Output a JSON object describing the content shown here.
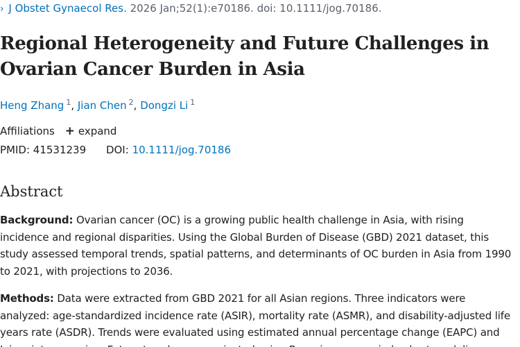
{
  "citation": {
    "journal": "J Obstet Gynaecol Res.",
    "details": "2026 Jan;52(1):e70186. doi: 10.1111/jog.70186."
  },
  "title": "Regional Heterogeneity and Future Challenges in Ovarian Cancer Burden in Asia",
  "authors": [
    {
      "name": "Heng Zhang",
      "sup": "1"
    },
    {
      "name": "Jian Chen",
      "sup": "2"
    },
    {
      "name": "Dongzi Li",
      "sup": "1"
    }
  ],
  "affiliations": {
    "label": "Affiliations",
    "expand_label": "expand"
  },
  "ids": {
    "pmid_label": "PMID:",
    "pmid": "41531239",
    "doi_label": "DOI:",
    "doi": "10.1111/jog.70186"
  },
  "abstract": {
    "heading": "Abstract",
    "background_label": "Background:",
    "background_text": "Ovarian cancer (OC) is a growing public health challenge in Asia, with rising incidence and regional disparities. Using the Global Burden of Disease (GBD) 2021 dataset, this study assessed temporal trends, spatial patterns, and determinants of OC burden in Asia from 1990 to 2021, with projections to 2036.",
    "methods_label": "Methods:",
    "methods_text": "Data were extracted from GBD 2021 for all Asian regions. Three indicators were analyzed: age-standardized incidence rate (ASIR), mortality rate (ASMR), and disability-adjusted life years rate (ASDR). Trends were evaluated using estimated annual percentage change (EAPC) and Joinpoint regression. Future trends were projected using Bayesian age-period-cohort modeling."
  }
}
